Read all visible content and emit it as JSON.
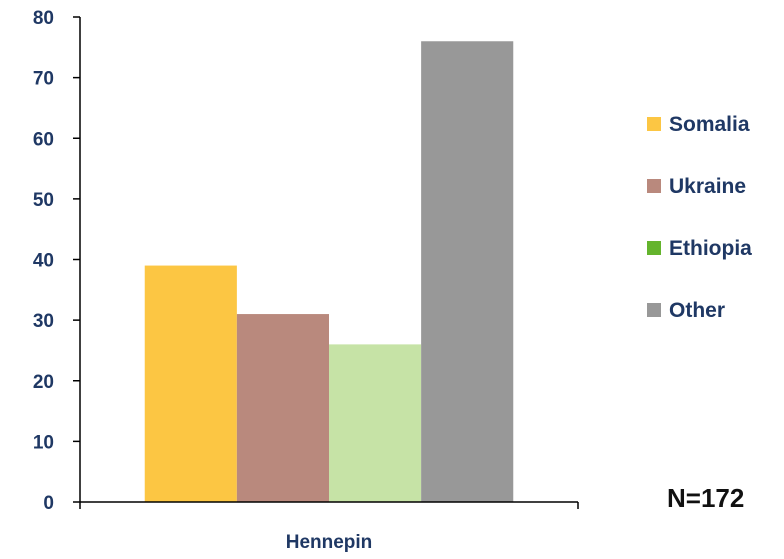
{
  "chart_data": {
    "type": "bar",
    "categories": [
      "Hennepin"
    ],
    "series": [
      {
        "name": "Somalia",
        "values": [
          39
        ],
        "bar_color": "#fcc643",
        "legend_color": "#fcc643"
      },
      {
        "name": "Ukraine",
        "values": [
          31
        ],
        "bar_color": "#b9897d",
        "legend_color": "#b9897d"
      },
      {
        "name": "Ethiopia",
        "values": [
          26
        ],
        "bar_color": "#c6e3a6",
        "legend_color": "#64b42d"
      },
      {
        "name": "Other",
        "values": [
          76
        ],
        "bar_color": "#989898",
        "legend_color": "#989898"
      }
    ],
    "ylim": [
      0,
      80
    ],
    "yticks": [
      0,
      10,
      20,
      30,
      40,
      50,
      60,
      70,
      80
    ],
    "xlabel": "",
    "ylabel": "",
    "title": "",
    "grid": false,
    "legend_position": "right",
    "annotation": "N=172"
  }
}
